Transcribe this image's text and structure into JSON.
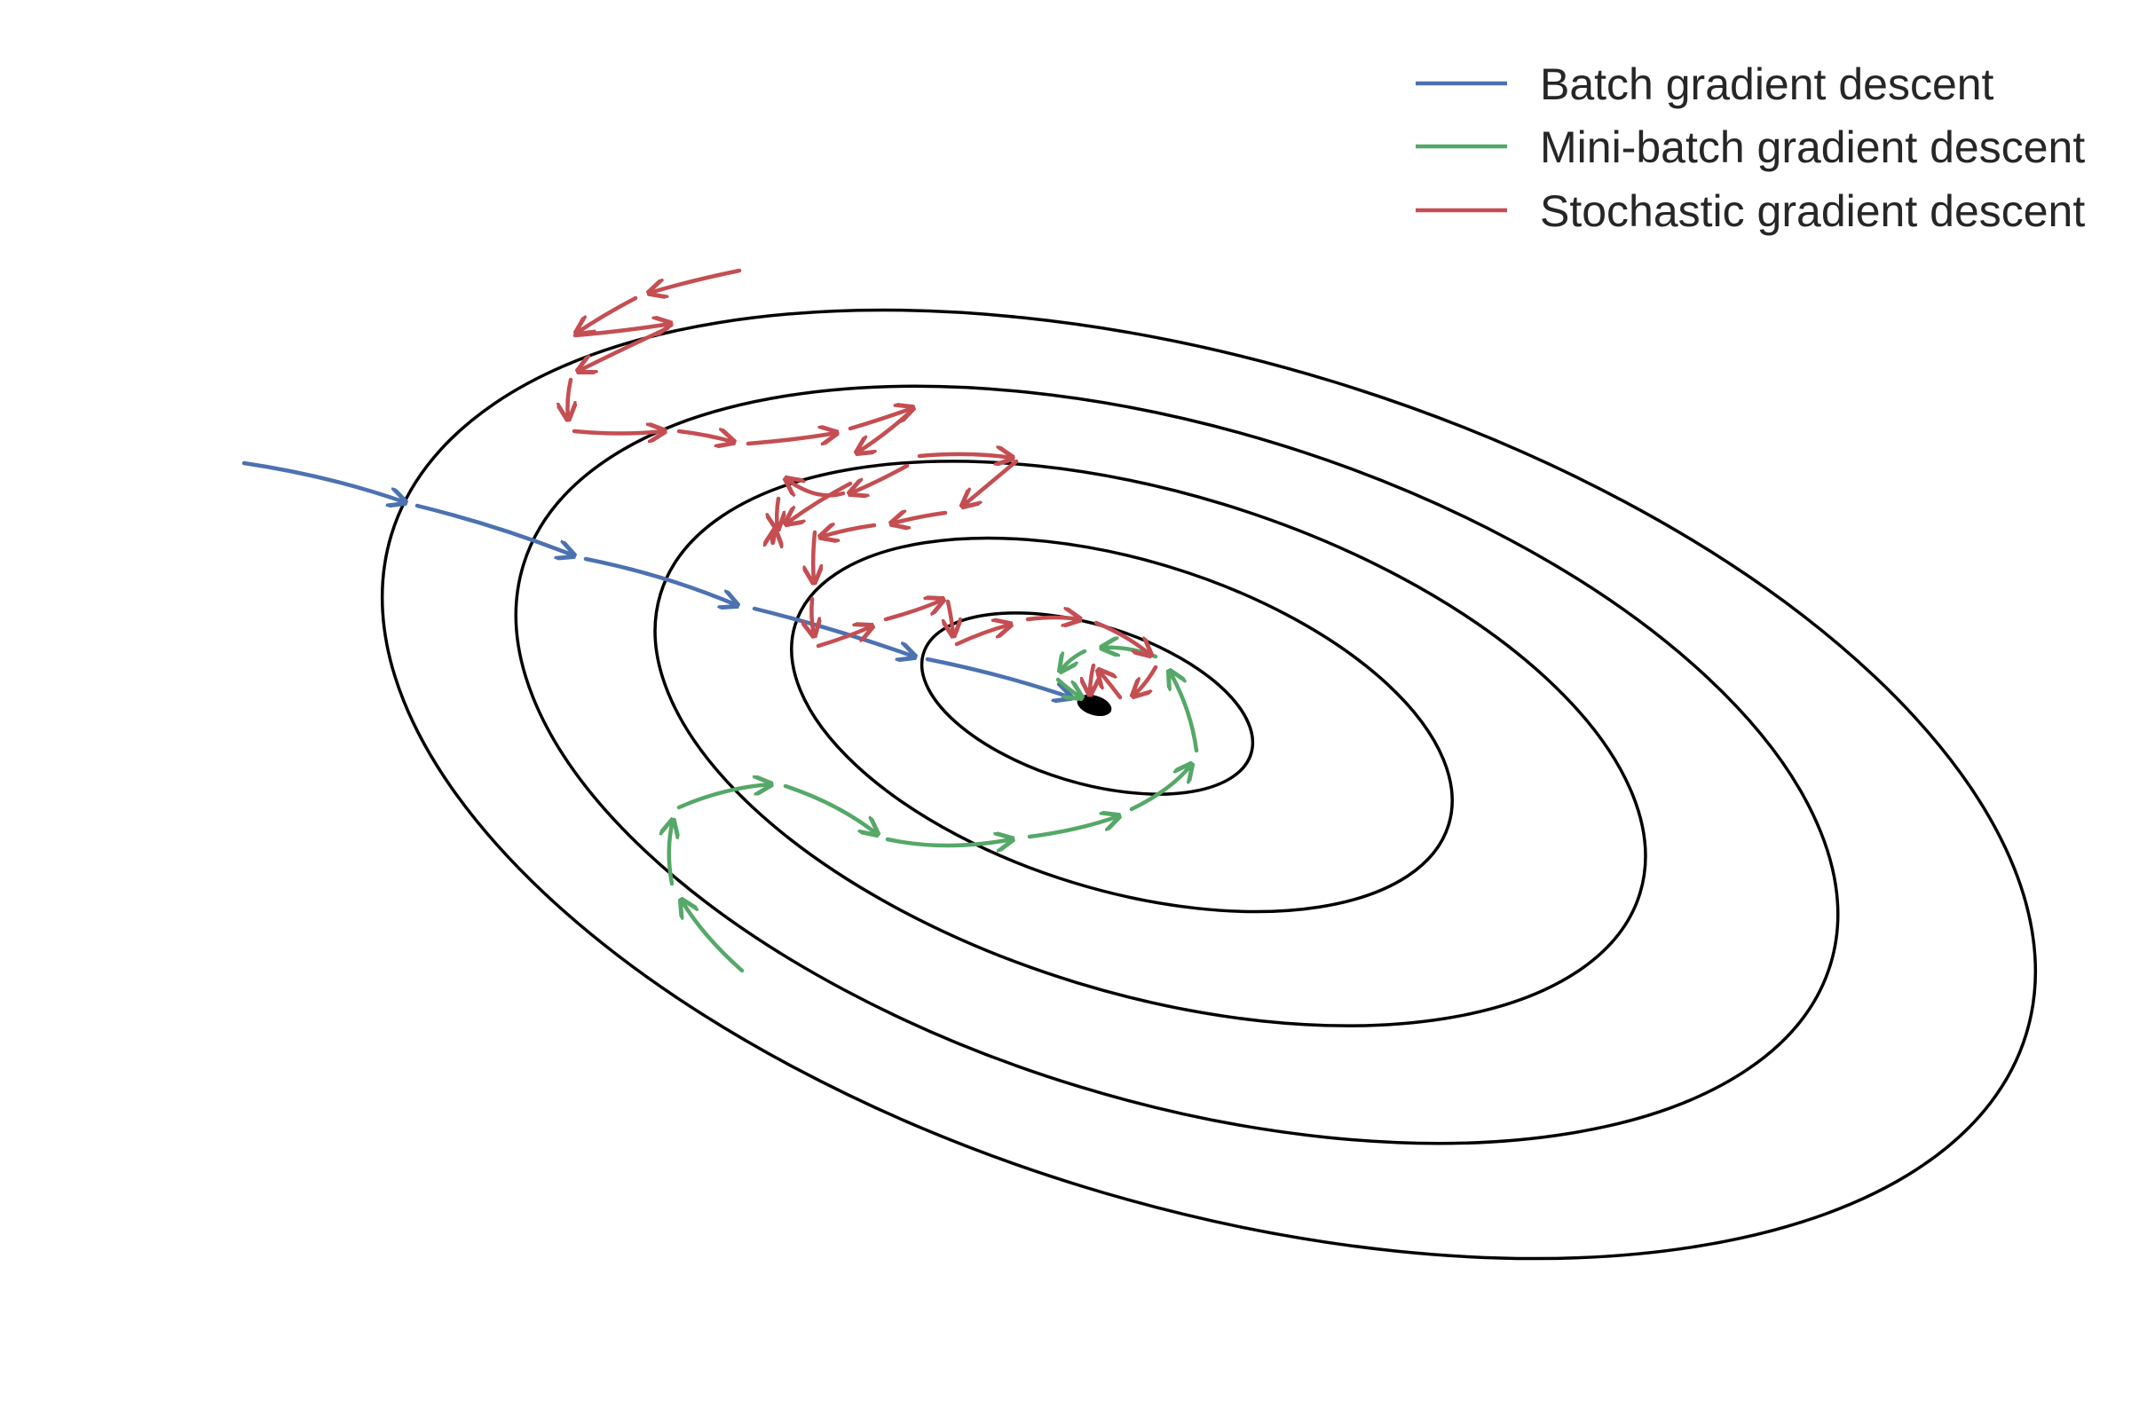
{
  "diagram": {
    "center_marker": {
      "color": "#000000"
    },
    "contour_color": "#000000",
    "legend": {
      "items": [
        {
          "key": "batch",
          "label": "Batch gradient descent",
          "color": "#4c72b0"
        },
        {
          "key": "minibatch",
          "label": "Mini-batch gradient descent",
          "color": "#55a868"
        },
        {
          "key": "sgd",
          "label": "Stochastic gradient descent",
          "color": "#c44e52"
        }
      ]
    }
  }
}
